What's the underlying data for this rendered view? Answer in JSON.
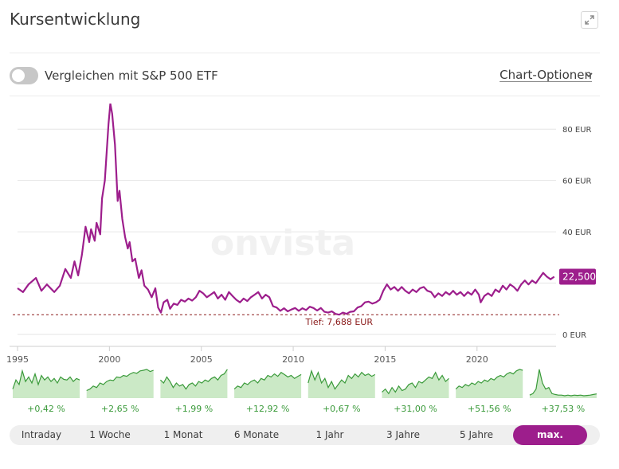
{
  "header": {
    "title": "Kursentwicklung"
  },
  "controls": {
    "compare_label": "Vergleichen mit S&P 500 ETF",
    "chart_options_label": "Chart-Optionen"
  },
  "colors": {
    "line": "#9d1e8c",
    "low_line": "#8a1a1a",
    "accent": "#9d1e8c",
    "spark_line": "#3a9a3a",
    "spark_fill": "#cbe9c6",
    "grid": "#e6e6e6"
  },
  "chart_data": {
    "type": "line",
    "title": "Kursentwicklung",
    "watermark": "onvista",
    "currency": "EUR",
    "x_range": [
      1995,
      2024.3
    ],
    "ylim": [
      0,
      90
    ],
    "y_ticks": [
      {
        "value": 0,
        "label": "0 EUR"
      },
      {
        "value": 20,
        "label": ""
      },
      {
        "value": 40,
        "label": "40 EUR"
      },
      {
        "value": 60,
        "label": "60 EUR"
      },
      {
        "value": 80,
        "label": "80 EUR"
      }
    ],
    "x_ticks": [
      {
        "value": 1995,
        "label": "1995"
      },
      {
        "value": 2000,
        "label": "2000"
      },
      {
        "value": 2005,
        "label": "2005"
      },
      {
        "value": 2010,
        "label": "2010"
      },
      {
        "value": 2015,
        "label": "2015"
      },
      {
        "value": 2020,
        "label": "2020"
      }
    ],
    "last_value": {
      "value": 22.5,
      "label": "22,500"
    },
    "low": {
      "value": 7.688,
      "label": "Tief: 7,688 EUR",
      "x": 2012.5
    },
    "series": [
      {
        "name": "Kurs",
        "points": [
          [
            1995.0,
            18.0
          ],
          [
            1995.3,
            16.5
          ],
          [
            1995.6,
            19.5
          ],
          [
            1996.0,
            22.0
          ],
          [
            1996.3,
            17.0
          ],
          [
            1996.6,
            19.5
          ],
          [
            1997.0,
            16.5
          ],
          [
            1997.3,
            19.0
          ],
          [
            1997.6,
            25.5
          ],
          [
            1997.9,
            22.0
          ],
          [
            1998.1,
            28.5
          ],
          [
            1998.3,
            23.0
          ],
          [
            1998.5,
            31.0
          ],
          [
            1998.7,
            42.0
          ],
          [
            1998.9,
            36.0
          ],
          [
            1999.0,
            41.0
          ],
          [
            1999.2,
            36.5
          ],
          [
            1999.3,
            43.5
          ],
          [
            1999.5,
            39.0
          ],
          [
            1999.6,
            53.0
          ],
          [
            1999.75,
            60.0
          ],
          [
            1999.85,
            71.0
          ],
          [
            1999.95,
            82.0
          ],
          [
            2000.05,
            90.0
          ],
          [
            2000.15,
            86.0
          ],
          [
            2000.3,
            74.0
          ],
          [
            2000.45,
            52.0
          ],
          [
            2000.55,
            56.0
          ],
          [
            2000.7,
            45.0
          ],
          [
            2000.85,
            38.0
          ],
          [
            2001.0,
            33.5
          ],
          [
            2001.1,
            36.0
          ],
          [
            2001.25,
            28.5
          ],
          [
            2001.4,
            29.5
          ],
          [
            2001.6,
            22.0
          ],
          [
            2001.75,
            25.0
          ],
          [
            2001.9,
            19.0
          ],
          [
            2002.1,
            17.5
          ],
          [
            2002.3,
            14.5
          ],
          [
            2002.5,
            18.0
          ],
          [
            2002.65,
            10.5
          ],
          [
            2002.8,
            8.5
          ],
          [
            2002.95,
            12.5
          ],
          [
            2003.15,
            13.5
          ],
          [
            2003.3,
            10.0
          ],
          [
            2003.5,
            12.0
          ],
          [
            2003.7,
            11.5
          ],
          [
            2003.9,
            13.5
          ],
          [
            2004.1,
            12.8
          ],
          [
            2004.3,
            14.0
          ],
          [
            2004.5,
            13.2
          ],
          [
            2004.7,
            14.5
          ],
          [
            2004.9,
            17.0
          ],
          [
            2005.1,
            16.0
          ],
          [
            2005.3,
            14.5
          ],
          [
            2005.5,
            15.5
          ],
          [
            2005.7,
            16.5
          ],
          [
            2005.9,
            14.0
          ],
          [
            2006.1,
            15.5
          ],
          [
            2006.3,
            13.5
          ],
          [
            2006.5,
            16.5
          ],
          [
            2006.7,
            15.0
          ],
          [
            2006.9,
            13.5
          ],
          [
            2007.1,
            12.5
          ],
          [
            2007.3,
            14.0
          ],
          [
            2007.5,
            13.0
          ],
          [
            2007.7,
            14.5
          ],
          [
            2007.9,
            15.5
          ],
          [
            2008.1,
            16.5
          ],
          [
            2008.3,
            14.0
          ],
          [
            2008.5,
            15.5
          ],
          [
            2008.7,
            14.5
          ],
          [
            2008.9,
            11.0
          ],
          [
            2009.1,
            10.5
          ],
          [
            2009.3,
            9.2
          ],
          [
            2009.5,
            10.2
          ],
          [
            2009.7,
            9.0
          ],
          [
            2009.9,
            9.7
          ],
          [
            2010.1,
            10.3
          ],
          [
            2010.3,
            9.2
          ],
          [
            2010.5,
            10.2
          ],
          [
            2010.7,
            9.5
          ],
          [
            2010.9,
            10.8
          ],
          [
            2011.1,
            10.3
          ],
          [
            2011.3,
            9.3
          ],
          [
            2011.5,
            10.3
          ],
          [
            2011.7,
            8.8
          ],
          [
            2011.9,
            8.5
          ],
          [
            2012.1,
            9.0
          ],
          [
            2012.3,
            8.0
          ],
          [
            2012.5,
            7.7
          ],
          [
            2012.7,
            8.5
          ],
          [
            2012.9,
            8.0
          ],
          [
            2013.1,
            8.8
          ],
          [
            2013.3,
            9.0
          ],
          [
            2013.5,
            10.5
          ],
          [
            2013.7,
            11.0
          ],
          [
            2013.9,
            12.5
          ],
          [
            2014.1,
            12.8
          ],
          [
            2014.3,
            12.0
          ],
          [
            2014.5,
            12.5
          ],
          [
            2014.7,
            13.5
          ],
          [
            2014.9,
            17.0
          ],
          [
            2015.1,
            19.5
          ],
          [
            2015.3,
            17.5
          ],
          [
            2015.5,
            18.5
          ],
          [
            2015.7,
            17.0
          ],
          [
            2015.9,
            18.5
          ],
          [
            2016.1,
            17.0
          ],
          [
            2016.3,
            16.0
          ],
          [
            2016.5,
            17.5
          ],
          [
            2016.7,
            16.5
          ],
          [
            2016.9,
            18.0
          ],
          [
            2017.1,
            18.5
          ],
          [
            2017.3,
            17.0
          ],
          [
            2017.5,
            16.5
          ],
          [
            2017.7,
            14.5
          ],
          [
            2017.9,
            16.0
          ],
          [
            2018.1,
            15.0
          ],
          [
            2018.3,
            16.5
          ],
          [
            2018.5,
            15.5
          ],
          [
            2018.7,
            17.0
          ],
          [
            2018.9,
            15.5
          ],
          [
            2019.1,
            16.5
          ],
          [
            2019.3,
            15.0
          ],
          [
            2019.5,
            16.5
          ],
          [
            2019.7,
            15.5
          ],
          [
            2019.9,
            17.5
          ],
          [
            2020.1,
            15.5
          ],
          [
            2020.2,
            12.5
          ],
          [
            2020.4,
            15.0
          ],
          [
            2020.6,
            16.0
          ],
          [
            2020.8,
            15.0
          ],
          [
            2021.0,
            17.5
          ],
          [
            2021.2,
            16.5
          ],
          [
            2021.4,
            19.0
          ],
          [
            2021.6,
            17.5
          ],
          [
            2021.8,
            19.5
          ],
          [
            2022.0,
            18.5
          ],
          [
            2022.2,
            17.0
          ],
          [
            2022.4,
            19.5
          ],
          [
            2022.6,
            21.0
          ],
          [
            2022.8,
            19.5
          ],
          [
            2023.0,
            21.0
          ],
          [
            2023.2,
            20.0
          ],
          [
            2023.4,
            22.0
          ],
          [
            2023.6,
            24.0
          ],
          [
            2023.8,
            22.5
          ],
          [
            2024.0,
            21.5
          ],
          [
            2024.2,
            22.5
          ]
        ]
      }
    ]
  },
  "sparklines": [
    {
      "label": "+0,42 %",
      "points": [
        0.3,
        0.6,
        0.45,
        0.9,
        0.55,
        0.7,
        0.5,
        0.8,
        0.45,
        0.75,
        0.6,
        0.7,
        0.55,
        0.65,
        0.5,
        0.7,
        0.62,
        0.6,
        0.7,
        0.55,
        0.65,
        0.6
      ]
    },
    {
      "label": "+2,65 %",
      "points": [
        0.25,
        0.3,
        0.4,
        0.35,
        0.5,
        0.45,
        0.55,
        0.6,
        0.58,
        0.7,
        0.68,
        0.75,
        0.72,
        0.8,
        0.85,
        0.82,
        0.9,
        0.92,
        0.95,
        0.88,
        0.92
      ]
    },
    {
      "label": "+1,99 %",
      "points": [
        0.6,
        0.5,
        0.7,
        0.55,
        0.35,
        0.5,
        0.4,
        0.45,
        0.3,
        0.45,
        0.5,
        0.4,
        0.55,
        0.5,
        0.6,
        0.55,
        0.65,
        0.7,
        0.6,
        0.75,
        0.8,
        0.95
      ]
    },
    {
      "label": "+12,92 %",
      "points": [
        0.3,
        0.4,
        0.35,
        0.5,
        0.45,
        0.55,
        0.6,
        0.5,
        0.65,
        0.6,
        0.75,
        0.7,
        0.8,
        0.72,
        0.85,
        0.78,
        0.7,
        0.75,
        0.65,
        0.72,
        0.78
      ]
    },
    {
      "label": "+0,67 %",
      "points": [
        0.5,
        0.9,
        0.6,
        0.85,
        0.5,
        0.65,
        0.35,
        0.55,
        0.3,
        0.45,
        0.6,
        0.5,
        0.75,
        0.65,
        0.8,
        0.7,
        0.85,
        0.75,
        0.8,
        0.72,
        0.78
      ]
    },
    {
      "label": "+31,00 %",
      "points": [
        0.2,
        0.3,
        0.15,
        0.35,
        0.2,
        0.4,
        0.25,
        0.3,
        0.45,
        0.5,
        0.35,
        0.55,
        0.5,
        0.6,
        0.7,
        0.65,
        0.85,
        0.6,
        0.75,
        0.55,
        0.65
      ]
    },
    {
      "label": "+51,56 %",
      "points": [
        0.3,
        0.4,
        0.35,
        0.45,
        0.4,
        0.5,
        0.45,
        0.55,
        0.5,
        0.6,
        0.55,
        0.65,
        0.6,
        0.7,
        0.75,
        0.7,
        0.8,
        0.85,
        0.8,
        0.9,
        0.95,
        0.92
      ]
    },
    {
      "label": "+37,53 %",
      "points": [
        0.1,
        0.15,
        0.3,
        0.95,
        0.5,
        0.3,
        0.35,
        0.15,
        0.12,
        0.1,
        0.1,
        0.08,
        0.1,
        0.08,
        0.1,
        0.09,
        0.1,
        0.08,
        0.09,
        0.1,
        0.12,
        0.14
      ]
    }
  ],
  "range_tabs": [
    "Intraday",
    "1 Woche",
    "1 Monat",
    "6 Monate",
    "1 Jahr",
    "3 Jahre",
    "5 Jahre",
    "max."
  ],
  "active_range": "max."
}
